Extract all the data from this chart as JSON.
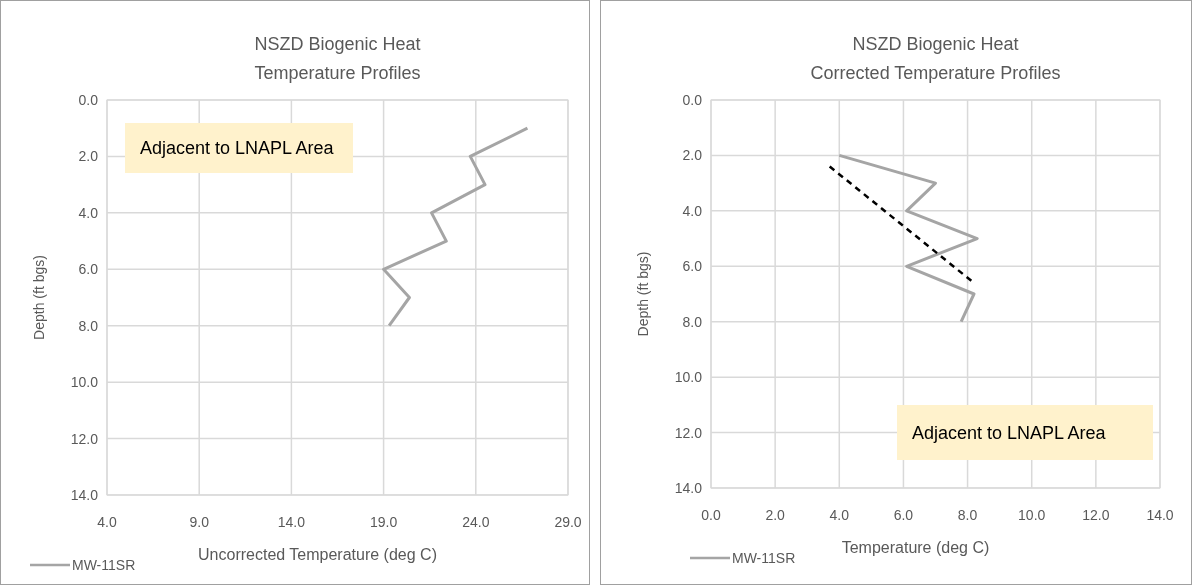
{
  "chart_data": [
    {
      "type": "line",
      "title": "NSZD Biogenic Heat",
      "subtitle": "Temperature Profiles",
      "xlabel": "Uncorrected Temperature (deg C)",
      "ylabel": "Depth (ft bgs)",
      "annotations": [
        "Adjacent to LNAPL Area"
      ],
      "series": [
        {
          "name": "MW-11SR",
          "color": "#a5a5a5",
          "x": [
            26.8,
            23.7,
            24.5,
            21.6,
            22.4,
            19.0,
            20.4,
            19.3
          ],
          "values": [
            1.0,
            2.0,
            3.0,
            4.0,
            5.0,
            6.0,
            7.0,
            8.0
          ]
        }
      ],
      "xlim": [
        4,
        29
      ],
      "xticks": [
        {
          "value": 4,
          "label": "4.0"
        },
        {
          "value": 9,
          "label": "9.0"
        },
        {
          "value": 14,
          "label": "14.0"
        },
        {
          "value": 19,
          "label": "19.0"
        },
        {
          "value": 24,
          "label": "24.0"
        },
        {
          "value": 29,
          "label": "29.0"
        }
      ],
      "ylim": [
        14,
        0
      ],
      "yticks": [
        {
          "value": 0,
          "label": "0.0"
        },
        {
          "value": 2,
          "label": "2.0"
        },
        {
          "value": 4,
          "label": "4.0"
        },
        {
          "value": 6,
          "label": "6.0"
        },
        {
          "value": 8,
          "label": "8.0"
        },
        {
          "value": 10,
          "label": "10.0"
        },
        {
          "value": 12,
          "label": "12.0"
        },
        {
          "value": 14,
          "label": "14.0"
        }
      ],
      "grid": true,
      "legend": "bottom left",
      "line_style": "solid"
    },
    {
      "type": "line",
      "title": "NSZD Biogenic Heat",
      "subtitle": "Corrected Temperature Profiles",
      "xlabel": "Temperature (deg C)",
      "ylabel": "Depth (ft bgs)",
      "annotations": [
        "Adjacent to LNAPL Area"
      ],
      "series": [
        {
          "name": "MW-11SR",
          "color": "#a5a5a5",
          "x": [
            4.0,
            7.0,
            6.1,
            8.3,
            6.1,
            8.2,
            7.8
          ],
          "values": [
            2.0,
            3.0,
            4.0,
            5.0,
            6.0,
            7.0,
            8.0
          ]
        },
        {
          "color": "#000000",
          "line_style": "dashed",
          "x": [
            3.7,
            8.2
          ],
          "values": [
            2.4,
            6.6
          ]
        }
      ],
      "xlim": [
        0,
        14
      ],
      "xticks": [
        {
          "value": 0,
          "label": "0.0"
        },
        {
          "value": 2,
          "label": "2.0"
        },
        {
          "value": 4,
          "label": "4.0"
        },
        {
          "value": 6,
          "label": "6.0"
        },
        {
          "value": 8,
          "label": "8.0"
        },
        {
          "value": 10,
          "label": "10.0"
        },
        {
          "value": 12,
          "label": "12.0"
        },
        {
          "value": 14,
          "label": "14.0"
        }
      ],
      "ylim": [
        14,
        0
      ],
      "yticks": [
        {
          "value": 0,
          "label": "0.0"
        },
        {
          "value": 2,
          "label": "2.0"
        },
        {
          "value": 4,
          "label": "4.0"
        },
        {
          "value": 6,
          "label": "6.0"
        },
        {
          "value": 8,
          "label": "8.0"
        },
        {
          "value": 10,
          "label": "10.0"
        },
        {
          "value": 12,
          "label": "12.0"
        },
        {
          "value": 14,
          "label": "14.0"
        }
      ],
      "grid": true,
      "legend": "bottom left",
      "line_style": "solid"
    }
  ]
}
